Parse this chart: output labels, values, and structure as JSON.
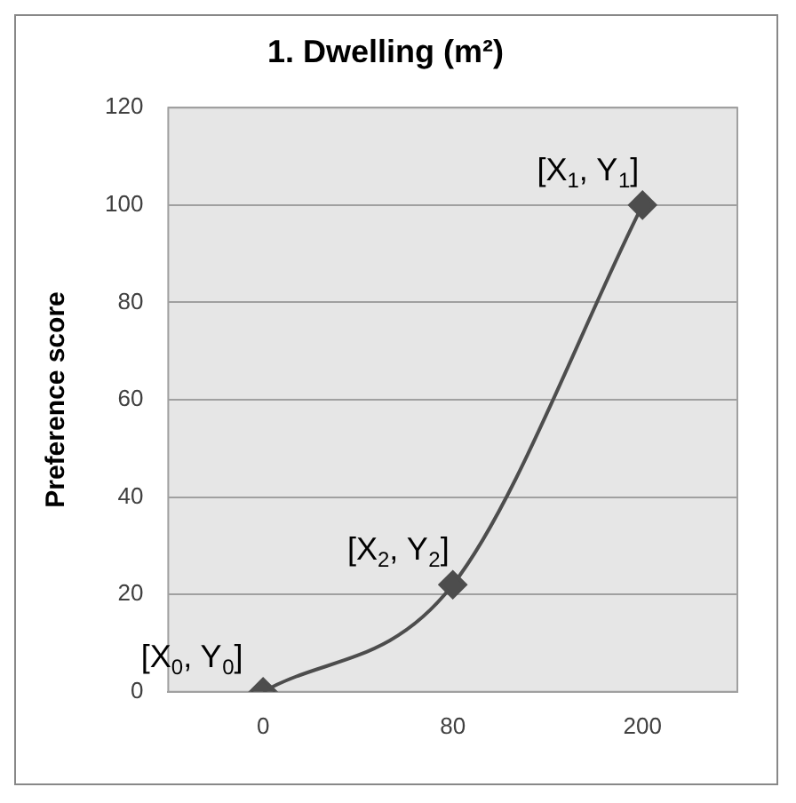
{
  "chart_data": {
    "type": "line",
    "title": "1. Dwelling (m²)",
    "ylabel": "Preference score",
    "categories": [
      "0",
      "80",
      "200"
    ],
    "values": [
      0,
      22,
      100
    ],
    "color": "#4d4d4d",
    "marker": "diamond",
    "line_style": "solid",
    "ylim": [
      0,
      120
    ],
    "yticks": [
      0,
      20,
      40,
      60,
      80,
      100,
      120
    ],
    "grid": "y",
    "legend": false,
    "annotations": [
      {
        "text": "[X$_{0}$, Y$_{0}$]",
        "x": "0",
        "y": 0
      },
      {
        "text": "[X$_{2}$, Y$_{2}$]",
        "x": "80",
        "y": 22
      },
      {
        "text": "[X$_{1}$, Y$_{1}$]",
        "x": "200",
        "y": 100
      }
    ]
  }
}
